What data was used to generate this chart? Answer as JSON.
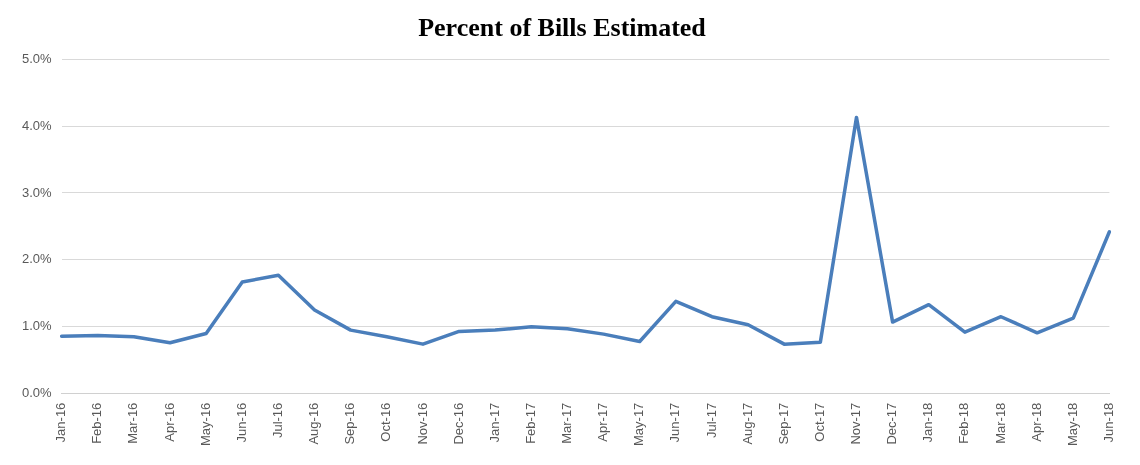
{
  "chart_data": {
    "type": "line",
    "title": "Percent of Bills Estimated",
    "categories": [
      "Jan-16",
      "Feb-16",
      "Mar-16",
      "Apr-16",
      "May-16",
      "Jun-16",
      "Jul-16",
      "Aug-16",
      "Sep-16",
      "Oct-16",
      "Nov-16",
      "Dec-16",
      "Jan-17",
      "Feb-17",
      "Mar-17",
      "Apr-17",
      "May-17",
      "Jun-17",
      "Jul-17",
      "Aug-17",
      "Sep-17",
      "Oct-17",
      "Nov-17",
      "Dec-17",
      "Jan-18",
      "Feb-18",
      "Mar-18",
      "Apr-18",
      "May-18",
      "Jun-18"
    ],
    "series": [
      {
        "color": "#4a7ebb",
        "values": [
          0.86,
          0.87,
          0.85,
          0.76,
          0.9,
          1.67,
          1.77,
          1.25,
          0.95,
          0.85,
          0.74,
          0.93,
          0.95,
          1.0,
          0.97,
          0.89,
          0.78,
          1.38,
          1.15,
          1.03,
          0.74,
          0.77,
          4.13,
          1.07,
          1.33,
          0.92,
          1.15,
          0.91,
          1.13,
          2.42
        ]
      }
    ],
    "ylim": [
      0,
      5
    ],
    "yticks": [
      {
        "value": 0,
        "label": "0.0%"
      },
      {
        "value": 1,
        "label": "1.0%"
      },
      {
        "value": 2,
        "label": "2.0%"
      },
      {
        "value": 3,
        "label": "3.0%"
      },
      {
        "value": 4,
        "label": "4.0%"
      },
      {
        "value": 5,
        "label": "5.0%"
      }
    ],
    "grid": "y",
    "legend": false,
    "marker": "none",
    "line_style": "solid"
  }
}
